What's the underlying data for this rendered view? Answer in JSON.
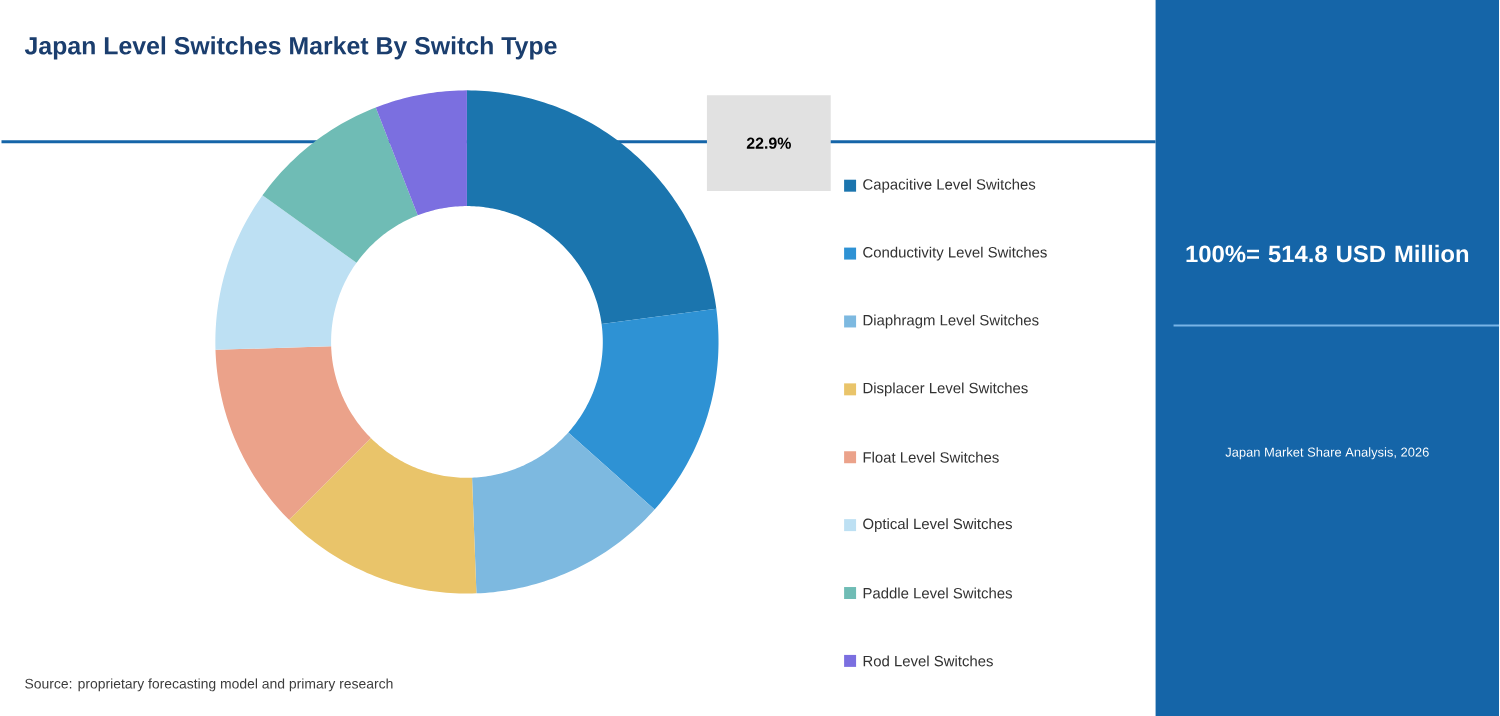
{
  "chart_data": {
    "type": "donut",
    "title": "Japan Level Switches Market By Switch Type",
    "categories": [
      "Capacitive Level Switches",
      "Conductivity Level Switches",
      "Diaphragm Level Switches",
      "Displacer Level Switches",
      "Float Level Switches",
      "Optical Level Switches",
      "Paddle Level Switches",
      "Rod Level Switches"
    ],
    "values": [
      22.9,
      13.7,
      12.8,
      13.1,
      12.0,
      10.4,
      9.2,
      5.9
    ],
    "colors": [
      "#1b75ae",
      "#2e92d4",
      "#7db9e0",
      "#e9c46a",
      "#eba28a",
      "#bde0f3",
      "#6fbcb5",
      "#7b6fe0"
    ],
    "value_labels": [
      "22.9%",
      null,
      null,
      null,
      null,
      null,
      null,
      null
    ],
    "legend": "right",
    "annotations": [
      "100%= 514.8 USD Million",
      "Japan Market Share Analysis, 2026",
      "Source: proprietary forecasting model and primary research"
    ]
  }
}
